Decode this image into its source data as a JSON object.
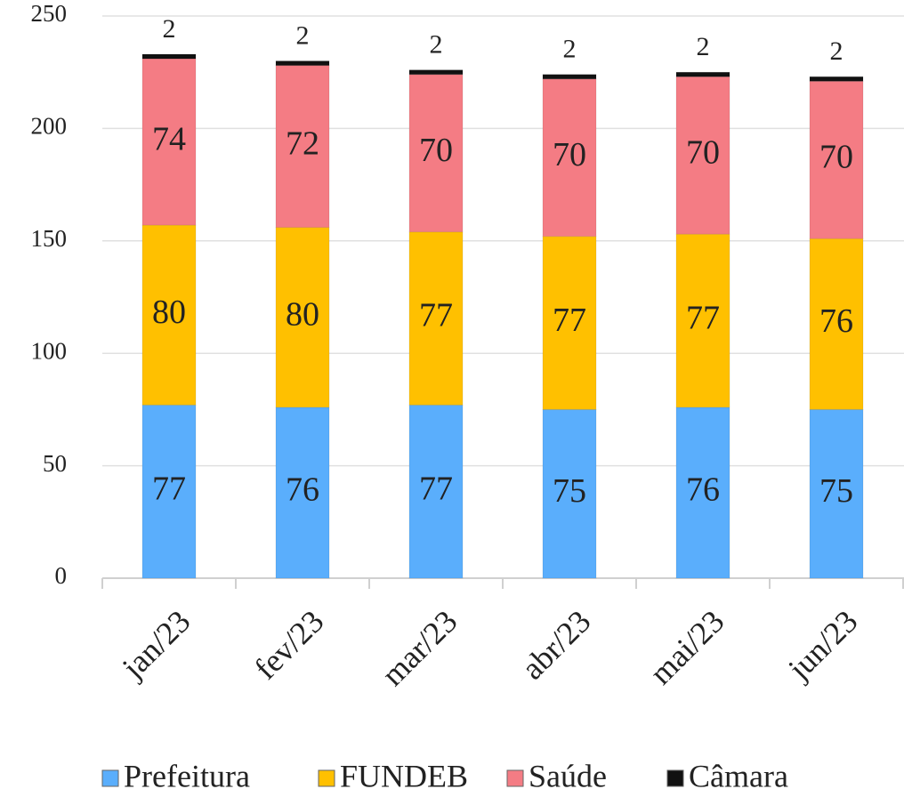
{
  "chart_data": {
    "type": "stacked_bar",
    "categories": [
      "jan/23",
      "fev/23",
      "mar/23",
      "abr/23",
      "mai/23",
      "jun/23"
    ],
    "series": [
      {
        "name": "Prefeitura",
        "color": "#5aaefc",
        "values": [
          77,
          76,
          77,
          75,
          76,
          75
        ]
      },
      {
        "name": "FUNDEB",
        "color": "#ffc000",
        "values": [
          80,
          80,
          77,
          77,
          77,
          76
        ]
      },
      {
        "name": "Saúde",
        "color": "#f47c84",
        "values": [
          74,
          72,
          70,
          70,
          70,
          70
        ]
      },
      {
        "name": "Câmara",
        "color": "#111111",
        "values": [
          2,
          2,
          2,
          2,
          2,
          2
        ]
      }
    ],
    "ylim": [
      0,
      250
    ],
    "yticks": [
      0,
      50,
      100,
      150,
      200,
      250
    ],
    "grid": true,
    "legend": "bottom"
  }
}
